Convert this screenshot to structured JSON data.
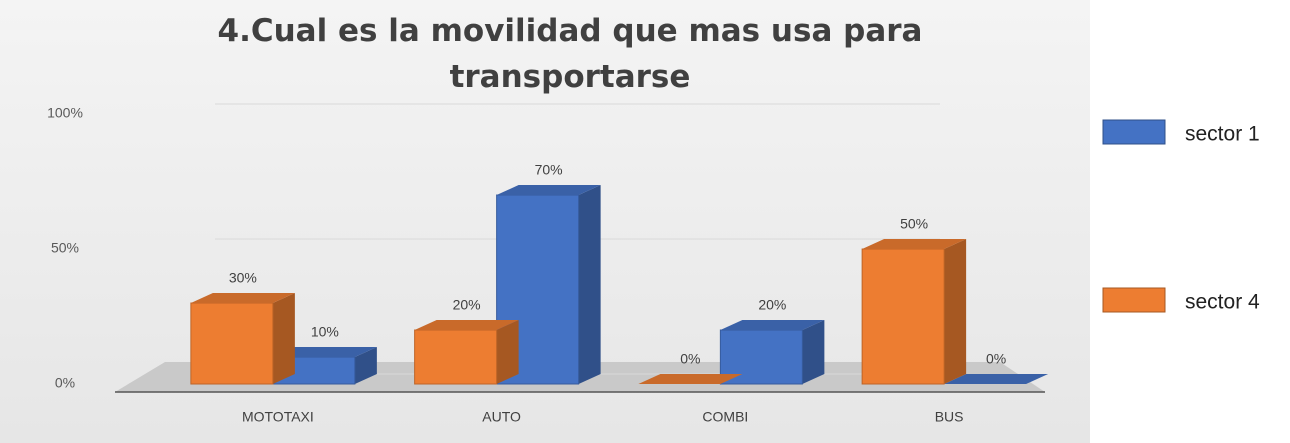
{
  "chart_data": {
    "type": "bar3d",
    "title": "4.Cual es la movilidad que mas usa para transportarse",
    "categories": [
      "MOTOTAXI",
      "AUTO",
      "COMBI",
      "BUS"
    ],
    "series": [
      {
        "name": "sector 1",
        "color": "#4472c4",
        "values": [
          10,
          70,
          20,
          0
        ],
        "value_labels": [
          "10%",
          "70%",
          "20%",
          "0%"
        ]
      },
      {
        "name": "sector 4",
        "color": "#ed7d31",
        "values": [
          30,
          20,
          0,
          50
        ],
        "value_labels": [
          "30%",
          "20%",
          "0%",
          "50%"
        ]
      }
    ],
    "ylim": [
      0,
      100
    ],
    "yticks": [
      {
        "value": 0,
        "label": "0%"
      },
      {
        "value": 50,
        "label": "50%"
      },
      {
        "value": 100,
        "label": "100%"
      }
    ],
    "grid": true,
    "legend": "right"
  }
}
